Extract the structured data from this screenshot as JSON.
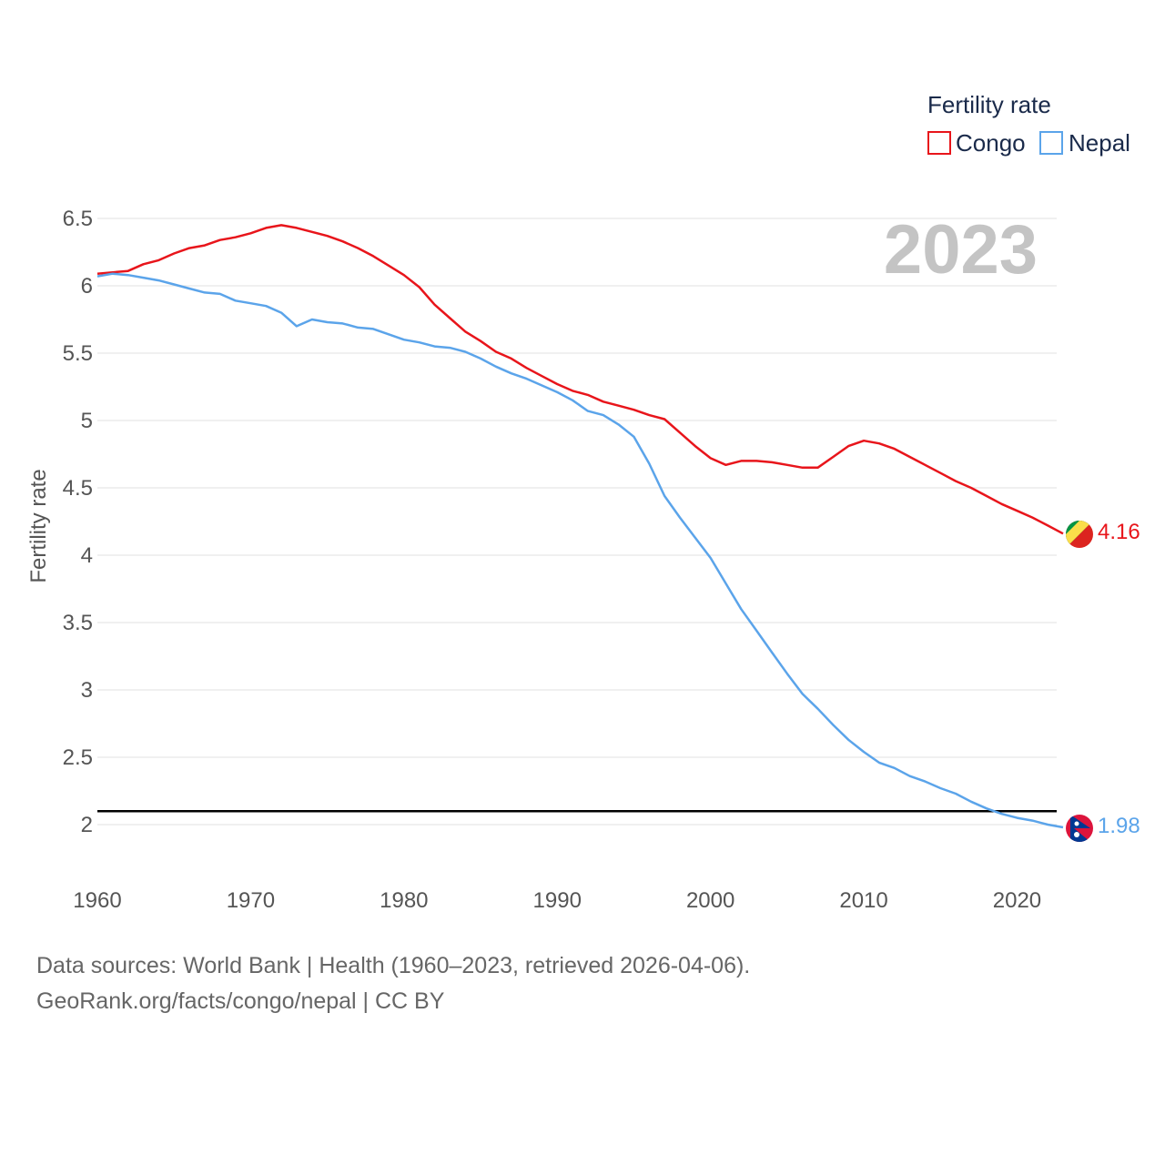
{
  "legend": {
    "title": "Fertility rate",
    "items": [
      {
        "label": "Congo",
        "color": "#e8151b"
      },
      {
        "label": "Nepal",
        "color": "#5ba4ea"
      }
    ]
  },
  "big_year": "2023",
  "source": {
    "line1": "Data sources: World Bank | Health (1960–2023, retrieved 2026-04-06).",
    "line2": "GeoRank.org/facts/congo/nepal | CC BY"
  },
  "chart_data": {
    "type": "line",
    "title": "Fertility rate",
    "xlabel": "",
    "ylabel": "Fertility rate",
    "xlim": [
      1960,
      2023
    ],
    "ylim": [
      1.85,
      6.55
    ],
    "xticks": [
      1960,
      1970,
      1980,
      1990,
      2000,
      2010,
      2020
    ],
    "xtick_labels": [
      "1960",
      "1970",
      "1980",
      "1990",
      "2000",
      "2010",
      "2020"
    ],
    "yticks": [
      2,
      2.5,
      3,
      3.5,
      4,
      4.5,
      5,
      5.5,
      6,
      6.5
    ],
    "ytick_labels": [
      "2",
      "2.5",
      "3",
      "3.5",
      "4",
      "4.5",
      "5",
      "5.5",
      "6",
      "6.5"
    ],
    "reference_line": {
      "y": 2.1,
      "color": "#000000"
    },
    "x": [
      1960,
      1961,
      1962,
      1963,
      1964,
      1965,
      1966,
      1967,
      1968,
      1969,
      1970,
      1971,
      1972,
      1973,
      1974,
      1975,
      1976,
      1977,
      1978,
      1979,
      1980,
      1981,
      1982,
      1983,
      1984,
      1985,
      1986,
      1987,
      1988,
      1989,
      1990,
      1991,
      1992,
      1993,
      1994,
      1995,
      1996,
      1997,
      1998,
      1999,
      2000,
      2001,
      2002,
      2003,
      2004,
      2005,
      2006,
      2007,
      2008,
      2009,
      2010,
      2011,
      2012,
      2013,
      2014,
      2015,
      2016,
      2017,
      2018,
      2019,
      2020,
      2021,
      2022,
      2023
    ],
    "series": [
      {
        "name": "Congo",
        "color": "#e8151b",
        "end_label": "4.16",
        "values": [
          6.09,
          6.1,
          6.11,
          6.16,
          6.19,
          6.24,
          6.28,
          6.3,
          6.34,
          6.36,
          6.39,
          6.43,
          6.45,
          6.43,
          6.4,
          6.37,
          6.33,
          6.28,
          6.22,
          6.15,
          6.08,
          5.99,
          5.86,
          5.76,
          5.66,
          5.59,
          5.51,
          5.46,
          5.39,
          5.33,
          5.27,
          5.22,
          5.19,
          5.14,
          5.11,
          5.08,
          5.04,
          5.01,
          4.91,
          4.81,
          4.72,
          4.67,
          4.7,
          4.7,
          4.69,
          4.67,
          4.65,
          4.65,
          4.73,
          4.81,
          4.85,
          4.83,
          4.79,
          4.73,
          4.67,
          4.61,
          4.55,
          4.5,
          4.44,
          4.38,
          4.33,
          4.28,
          4.22,
          4.16
        ]
      },
      {
        "name": "Nepal",
        "color": "#5ba4ea",
        "end_label": "1.98",
        "values": [
          6.07,
          6.09,
          6.08,
          6.06,
          6.04,
          6.01,
          5.98,
          5.95,
          5.94,
          5.89,
          5.87,
          5.85,
          5.8,
          5.7,
          5.75,
          5.73,
          5.72,
          5.69,
          5.68,
          5.64,
          5.6,
          5.58,
          5.55,
          5.54,
          5.51,
          5.46,
          5.4,
          5.35,
          5.31,
          5.26,
          5.21,
          5.15,
          5.07,
          5.04,
          4.97,
          4.88,
          4.68,
          4.44,
          4.28,
          4.13,
          3.98,
          3.79,
          3.6,
          3.44,
          3.28,
          3.12,
          2.97,
          2.86,
          2.74,
          2.63,
          2.54,
          2.46,
          2.42,
          2.36,
          2.32,
          2.27,
          2.23,
          2.17,
          2.12,
          2.08,
          2.05,
          2.03,
          2.0,
          1.98
        ]
      }
    ]
  }
}
